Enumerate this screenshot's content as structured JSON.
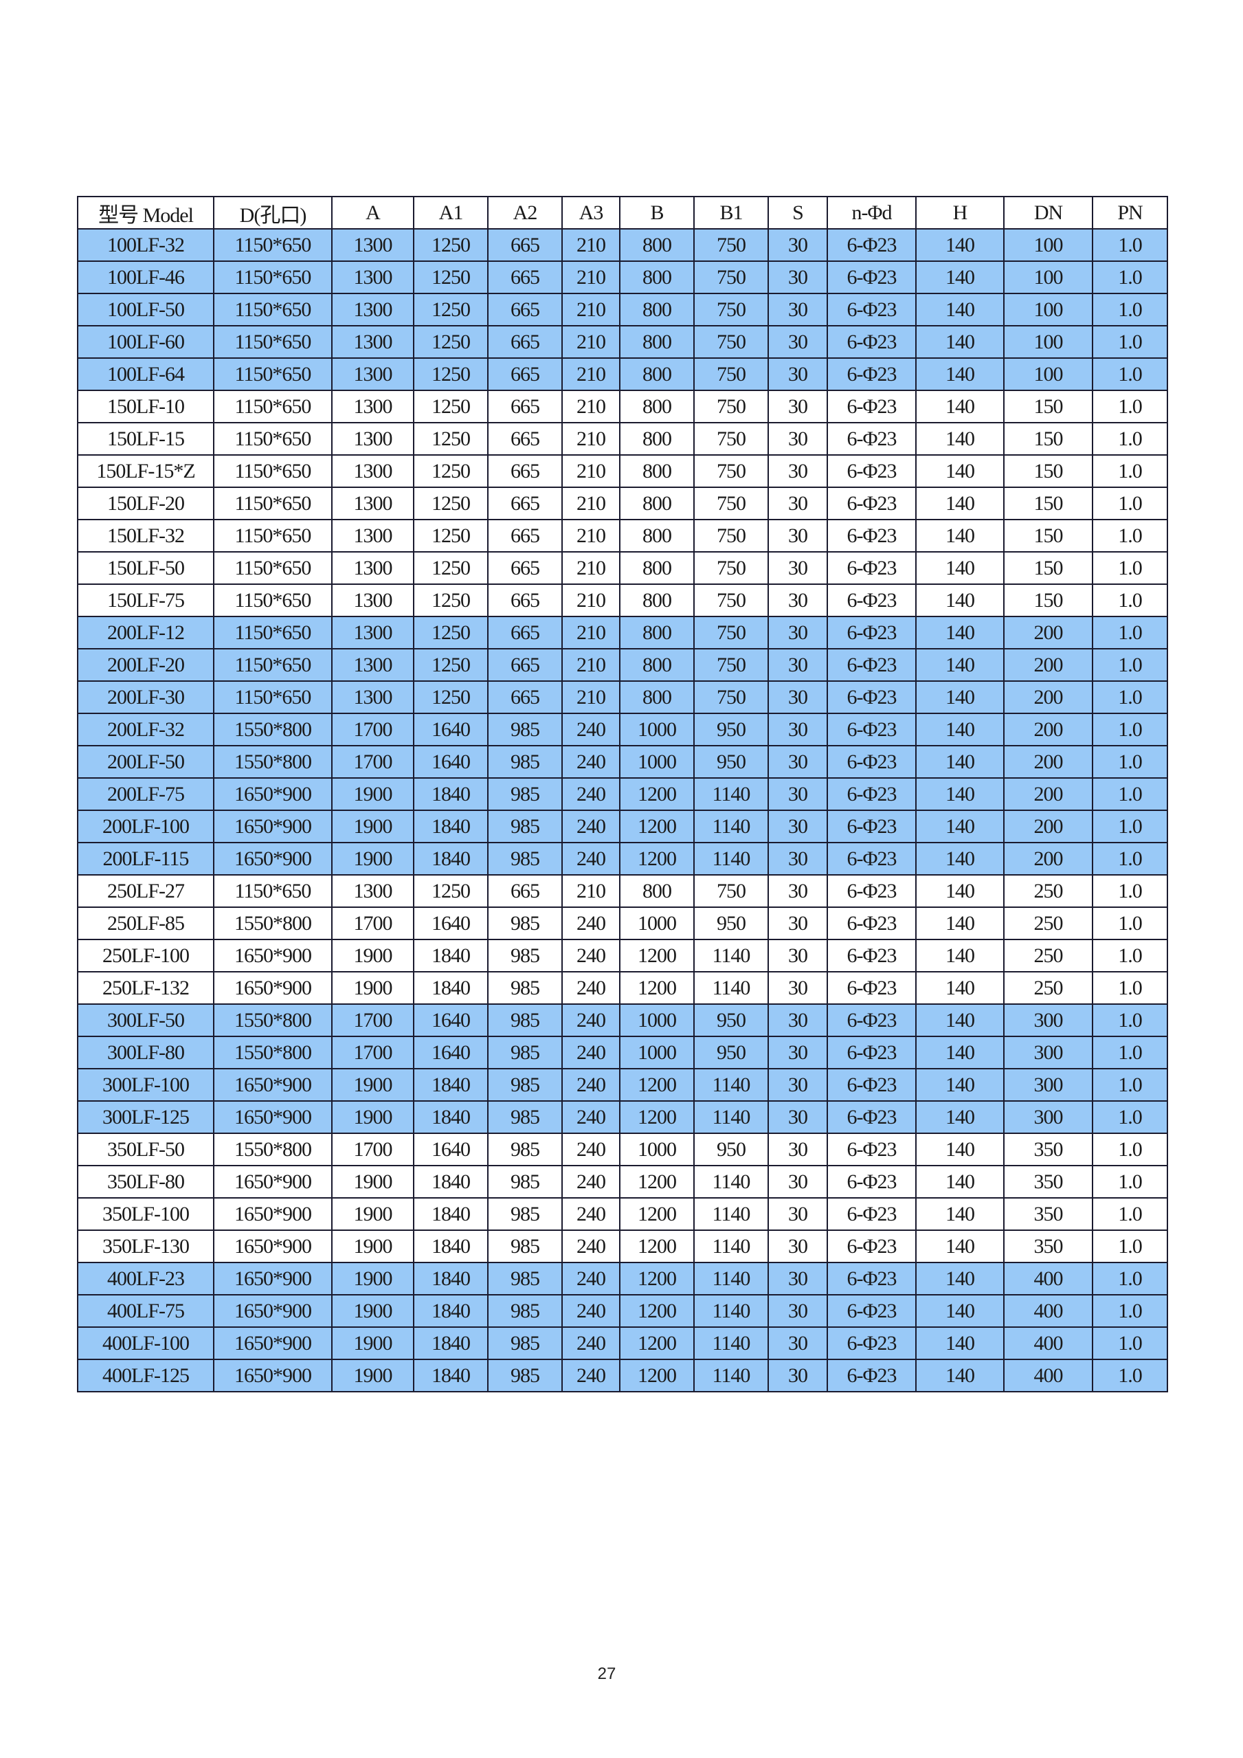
{
  "table": {
    "headers": [
      "型号 Model",
      "D(孔口)",
      "A",
      "A1",
      "A2",
      "A3",
      "B",
      "B1",
      "S",
      "n-Φd",
      "H",
      "DN",
      "PN"
    ],
    "highlight_color": "#99c9f7",
    "rows": [
      {
        "highlight": true,
        "cells": [
          "100LF-32",
          "1150*650",
          "1300",
          "1250",
          "665",
          "210",
          "800",
          "750",
          "30",
          "6-Φ23",
          "140",
          "100",
          "1.0"
        ]
      },
      {
        "highlight": true,
        "cells": [
          "100LF-46",
          "1150*650",
          "1300",
          "1250",
          "665",
          "210",
          "800",
          "750",
          "30",
          "6-Φ23",
          "140",
          "100",
          "1.0"
        ]
      },
      {
        "highlight": true,
        "cells": [
          "100LF-50",
          "1150*650",
          "1300",
          "1250",
          "665",
          "210",
          "800",
          "750",
          "30",
          "6-Φ23",
          "140",
          "100",
          "1.0"
        ]
      },
      {
        "highlight": true,
        "cells": [
          "100LF-60",
          "1150*650",
          "1300",
          "1250",
          "665",
          "210",
          "800",
          "750",
          "30",
          "6-Φ23",
          "140",
          "100",
          "1.0"
        ]
      },
      {
        "highlight": true,
        "cells": [
          "100LF-64",
          "1150*650",
          "1300",
          "1250",
          "665",
          "210",
          "800",
          "750",
          "30",
          "6-Φ23",
          "140",
          "100",
          "1.0"
        ]
      },
      {
        "highlight": false,
        "cells": [
          "150LF-10",
          "1150*650",
          "1300",
          "1250",
          "665",
          "210",
          "800",
          "750",
          "30",
          "6-Φ23",
          "140",
          "150",
          "1.0"
        ]
      },
      {
        "highlight": false,
        "cells": [
          "150LF-15",
          "1150*650",
          "1300",
          "1250",
          "665",
          "210",
          "800",
          "750",
          "30",
          "6-Φ23",
          "140",
          "150",
          "1.0"
        ]
      },
      {
        "highlight": false,
        "cells": [
          "150LF-15*Z",
          "1150*650",
          "1300",
          "1250",
          "665",
          "210",
          "800",
          "750",
          "30",
          "6-Φ23",
          "140",
          "150",
          "1.0"
        ]
      },
      {
        "highlight": false,
        "cells": [
          "150LF-20",
          "1150*650",
          "1300",
          "1250",
          "665",
          "210",
          "800",
          "750",
          "30",
          "6-Φ23",
          "140",
          "150",
          "1.0"
        ]
      },
      {
        "highlight": false,
        "cells": [
          "150LF-32",
          "1150*650",
          "1300",
          "1250",
          "665",
          "210",
          "800",
          "750",
          "30",
          "6-Φ23",
          "140",
          "150",
          "1.0"
        ]
      },
      {
        "highlight": false,
        "cells": [
          "150LF-50",
          "1150*650",
          "1300",
          "1250",
          "665",
          "210",
          "800",
          "750",
          "30",
          "6-Φ23",
          "140",
          "150",
          "1.0"
        ]
      },
      {
        "highlight": false,
        "cells": [
          "150LF-75",
          "1150*650",
          "1300",
          "1250",
          "665",
          "210",
          "800",
          "750",
          "30",
          "6-Φ23",
          "140",
          "150",
          "1.0"
        ]
      },
      {
        "highlight": true,
        "cells": [
          "200LF-12",
          "1150*650",
          "1300",
          "1250",
          "665",
          "210",
          "800",
          "750",
          "30",
          "6-Φ23",
          "140",
          "200",
          "1.0"
        ]
      },
      {
        "highlight": true,
        "cells": [
          "200LF-20",
          "1150*650",
          "1300",
          "1250",
          "665",
          "210",
          "800",
          "750",
          "30",
          "6-Φ23",
          "140",
          "200",
          "1.0"
        ]
      },
      {
        "highlight": true,
        "cells": [
          "200LF-30",
          "1150*650",
          "1300",
          "1250",
          "665",
          "210",
          "800",
          "750",
          "30",
          "6-Φ23",
          "140",
          "200",
          "1.0"
        ]
      },
      {
        "highlight": true,
        "cells": [
          "200LF-32",
          "1550*800",
          "1700",
          "1640",
          "985",
          "240",
          "1000",
          "950",
          "30",
          "6-Φ23",
          "140",
          "200",
          "1.0"
        ]
      },
      {
        "highlight": true,
        "cells": [
          "200LF-50",
          "1550*800",
          "1700",
          "1640",
          "985",
          "240",
          "1000",
          "950",
          "30",
          "6-Φ23",
          "140",
          "200",
          "1.0"
        ]
      },
      {
        "highlight": true,
        "cells": [
          "200LF-75",
          "1650*900",
          "1900",
          "1840",
          "985",
          "240",
          "1200",
          "1140",
          "30",
          "6-Φ23",
          "140",
          "200",
          "1.0"
        ]
      },
      {
        "highlight": true,
        "cells": [
          "200LF-100",
          "1650*900",
          "1900",
          "1840",
          "985",
          "240",
          "1200",
          "1140",
          "30",
          "6-Φ23",
          "140",
          "200",
          "1.0"
        ]
      },
      {
        "highlight": true,
        "cells": [
          "200LF-115",
          "1650*900",
          "1900",
          "1840",
          "985",
          "240",
          "1200",
          "1140",
          "30",
          "6-Φ23",
          "140",
          "200",
          "1.0"
        ]
      },
      {
        "highlight": false,
        "cells": [
          "250LF-27",
          "1150*650",
          "1300",
          "1250",
          "665",
          "210",
          "800",
          "750",
          "30",
          "6-Φ23",
          "140",
          "250",
          "1.0"
        ]
      },
      {
        "highlight": false,
        "cells": [
          "250LF-85",
          "1550*800",
          "1700",
          "1640",
          "985",
          "240",
          "1000",
          "950",
          "30",
          "6-Φ23",
          "140",
          "250",
          "1.0"
        ]
      },
      {
        "highlight": false,
        "cells": [
          "250LF-100",
          "1650*900",
          "1900",
          "1840",
          "985",
          "240",
          "1200",
          "1140",
          "30",
          "6-Φ23",
          "140",
          "250",
          "1.0"
        ]
      },
      {
        "highlight": false,
        "cells": [
          "250LF-132",
          "1650*900",
          "1900",
          "1840",
          "985",
          "240",
          "1200",
          "1140",
          "30",
          "6-Φ23",
          "140",
          "250",
          "1.0"
        ]
      },
      {
        "highlight": true,
        "cells": [
          "300LF-50",
          "1550*800",
          "1700",
          "1640",
          "985",
          "240",
          "1000",
          "950",
          "30",
          "6-Φ23",
          "140",
          "300",
          "1.0"
        ]
      },
      {
        "highlight": true,
        "cells": [
          "300LF-80",
          "1550*800",
          "1700",
          "1640",
          "985",
          "240",
          "1000",
          "950",
          "30",
          "6-Φ23",
          "140",
          "300",
          "1.0"
        ]
      },
      {
        "highlight": true,
        "cells": [
          "300LF-100",
          "1650*900",
          "1900",
          "1840",
          "985",
          "240",
          "1200",
          "1140",
          "30",
          "6-Φ23",
          "140",
          "300",
          "1.0"
        ]
      },
      {
        "highlight": true,
        "cells": [
          "300LF-125",
          "1650*900",
          "1900",
          "1840",
          "985",
          "240",
          "1200",
          "1140",
          "30",
          "6-Φ23",
          "140",
          "300",
          "1.0"
        ]
      },
      {
        "highlight": false,
        "cells": [
          "350LF-50",
          "1550*800",
          "1700",
          "1640",
          "985",
          "240",
          "1000",
          "950",
          "30",
          "6-Φ23",
          "140",
          "350",
          "1.0"
        ]
      },
      {
        "highlight": false,
        "cells": [
          "350LF-80",
          "1650*900",
          "1900",
          "1840",
          "985",
          "240",
          "1200",
          "1140",
          "30",
          "6-Φ23",
          "140",
          "350",
          "1.0"
        ]
      },
      {
        "highlight": false,
        "cells": [
          "350LF-100",
          "1650*900",
          "1900",
          "1840",
          "985",
          "240",
          "1200",
          "1140",
          "30",
          "6-Φ23",
          "140",
          "350",
          "1.0"
        ]
      },
      {
        "highlight": false,
        "cells": [
          "350LF-130",
          "1650*900",
          "1900",
          "1840",
          "985",
          "240",
          "1200",
          "1140",
          "30",
          "6-Φ23",
          "140",
          "350",
          "1.0"
        ]
      },
      {
        "highlight": true,
        "cells": [
          "400LF-23",
          "1650*900",
          "1900",
          "1840",
          "985",
          "240",
          "1200",
          "1140",
          "30",
          "6-Φ23",
          "140",
          "400",
          "1.0"
        ]
      },
      {
        "highlight": true,
        "cells": [
          "400LF-75",
          "1650*900",
          "1900",
          "1840",
          "985",
          "240",
          "1200",
          "1140",
          "30",
          "6-Φ23",
          "140",
          "400",
          "1.0"
        ]
      },
      {
        "highlight": true,
        "cells": [
          "400LF-100",
          "1650*900",
          "1900",
          "1840",
          "985",
          "240",
          "1200",
          "1140",
          "30",
          "6-Φ23",
          "140",
          "400",
          "1.0"
        ]
      },
      {
        "highlight": true,
        "cells": [
          "400LF-125",
          "1650*900",
          "1900",
          "1840",
          "985",
          "240",
          "1200",
          "1140",
          "30",
          "6-Φ23",
          "140",
          "400",
          "1.0"
        ]
      }
    ]
  },
  "page_number": "27"
}
